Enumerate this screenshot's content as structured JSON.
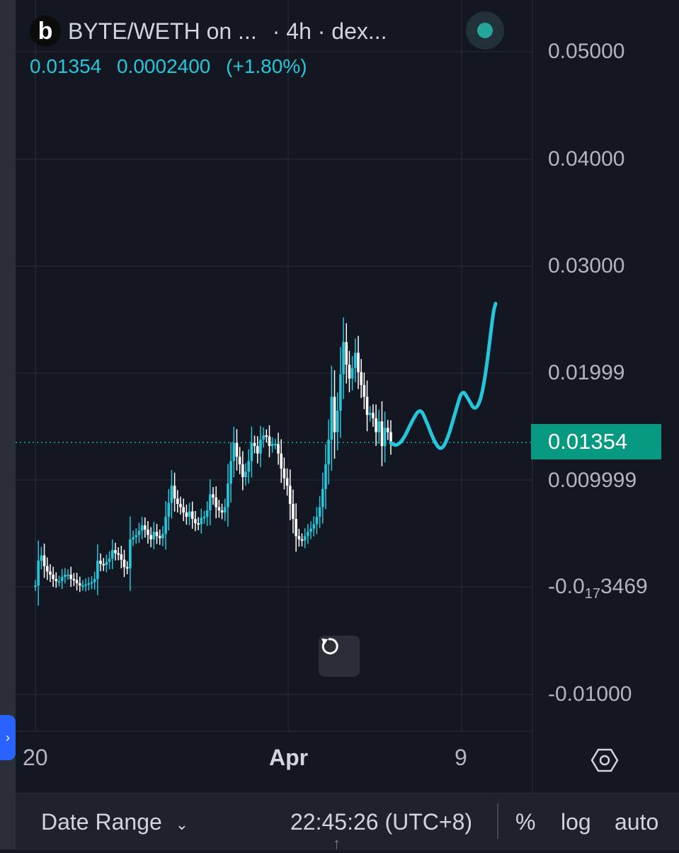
{
  "header": {
    "logo_letter": "b",
    "symbol_title": "BYTE/WETH on ...",
    "timeframe": "· 4h · dex..."
  },
  "ohlc": {
    "close": "0.01354",
    "change": "0.0002400",
    "change_pct": "(+1.80%)"
  },
  "price_axis": {
    "ticks": [
      "0.05000",
      "0.04000",
      "0.03000",
      "0.01999",
      "0.009999",
      "-0.0",
      "-0.01000"
    ],
    "compressed_tick": {
      "prefix": "-0.0",
      "subscript": "17",
      "suffix": "3469"
    },
    "last_price_label": "0.01354"
  },
  "time_axis": {
    "labels": [
      "20",
      "Apr",
      "9"
    ]
  },
  "bottom_bar": {
    "date_range_label": "Date Range",
    "clock": "22:45:26 (UTC+8)",
    "percent_label": "%",
    "log_label": "log",
    "auto_label": "auto"
  },
  "colors": {
    "background": "#131722",
    "bull_candle": "#26c6da",
    "bear_candle": "#ffffff",
    "price_line": "#26a69a",
    "last_price_bg": "#089981",
    "drawing": "#26c6da",
    "expand_tab": "#2962ff"
  },
  "icons": {
    "status": "green-dot-icon",
    "reset": "reset-chart-icon",
    "settings": "hexagon-settings-icon",
    "expand": "chevron-right-icon"
  },
  "chart_data": {
    "type": "candlestick",
    "symbol": "BYTE/WETH",
    "interval": "4h",
    "ylim": [
      -0.0134,
      0.0534
    ],
    "x_labels": [
      "20",
      "Apr",
      "9"
    ],
    "last_price": 0.01354,
    "candles_close": [
      0.0002,
      0.0025,
      0.003,
      0.002,
      0.0015,
      0.0012,
      0.0008,
      0.0006,
      0.0006,
      0.001,
      0.0012,
      0.0012,
      0.0008,
      0.0007,
      0.0004,
      0.0002,
      0.0002,
      0.0003,
      0.0004,
      0.0005,
      0.0008,
      0.0025,
      0.0022,
      0.0021,
      0.0024,
      0.0027,
      0.0035,
      0.0032,
      0.0031,
      0.0026,
      0.0019,
      0.0018,
      0.0045,
      0.0047,
      0.0049,
      0.0053,
      0.0058,
      0.0054,
      0.0049,
      0.0045,
      0.0052,
      0.0048,
      0.0046,
      0.005,
      0.0066,
      0.0079,
      0.0095,
      0.0083,
      0.0078,
      0.0075,
      0.007,
      0.0066,
      0.0071,
      0.0064,
      0.006,
      0.0059,
      0.0065,
      0.0066,
      0.0072,
      0.0087,
      0.0084,
      0.0075,
      0.0072,
      0.007,
      0.0075,
      0.0097,
      0.0118,
      0.0135,
      0.0122,
      0.0115,
      0.0103,
      0.0108,
      0.0118,
      0.0135,
      0.0132,
      0.0125,
      0.0138,
      0.0142,
      0.0141,
      0.0132,
      0.0134,
      0.0134,
      0.0125,
      0.0111,
      0.0102,
      0.0095,
      0.0078,
      0.0064,
      0.0048,
      0.0045,
      0.0044,
      0.0048,
      0.0052,
      0.0055,
      0.0059,
      0.0066,
      0.0075,
      0.0092,
      0.0115,
      0.0138,
      0.0178,
      0.0145,
      0.0165,
      0.0199,
      0.0229,
      0.0208,
      0.0195,
      0.0205,
      0.0219,
      0.0201,
      0.0189,
      0.0178,
      0.0161,
      0.0163,
      0.0158,
      0.0145,
      0.0155,
      0.0132,
      0.0149,
      0.0145,
      0.0135
    ],
    "drawing_polyline": [
      [
        0.0,
        0.0135
      ],
      [
        0.05,
        0.0132
      ],
      [
        0.12,
        0.0138
      ],
      [
        0.2,
        0.0155
      ],
      [
        0.28,
        0.0168
      ],
      [
        0.34,
        0.0155
      ],
      [
        0.42,
        0.0135
      ],
      [
        0.48,
        0.0128
      ],
      [
        0.54,
        0.0138
      ],
      [
        0.62,
        0.0165
      ],
      [
        0.68,
        0.0185
      ],
      [
        0.74,
        0.0176
      ],
      [
        0.8,
        0.0165
      ],
      [
        0.86,
        0.0175
      ],
      [
        0.91,
        0.0203
      ],
      [
        0.95,
        0.0235
      ],
      [
        0.98,
        0.0258
      ],
      [
        1.0,
        0.0265
      ]
    ]
  }
}
